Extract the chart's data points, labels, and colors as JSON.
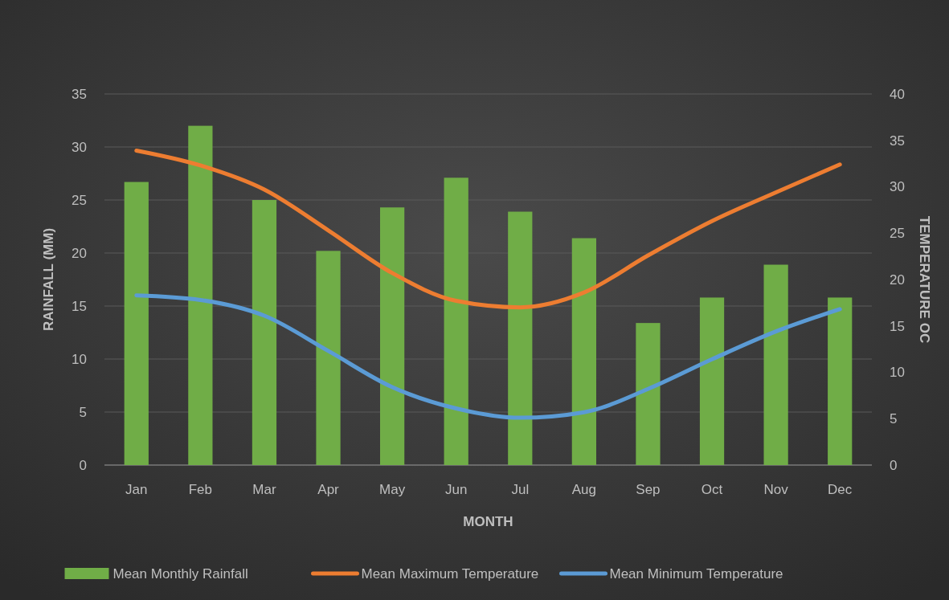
{
  "chart_data": {
    "type": "bar",
    "xlabel": "MONTH",
    "ylabel": "RAINFALL (MM)",
    "y2label": "TEMPERATURE OC",
    "categories": [
      "Jan",
      "Feb",
      "Mar",
      "Apr",
      "May",
      "Jun",
      "Jul",
      "Aug",
      "Sep",
      "Oct",
      "Nov",
      "Dec"
    ],
    "series": [
      {
        "name": "Mean Monthly Rainfall",
        "color": "#70ad47",
        "values": [
          26.7,
          32.0,
          25.0,
          20.2,
          24.3,
          27.1,
          23.9,
          21.4,
          13.4,
          15.8,
          18.9,
          15.8
        ]
      },
      {
        "name": "Mean Maximum Temperature",
        "type": "line",
        "axis": "y2",
        "color": "#ed7d31",
        "values": [
          33.9,
          32.3,
          29.7,
          25.3,
          20.7,
          17.7,
          17.0,
          18.6,
          22.6,
          26.3,
          29.4,
          32.4
        ]
      },
      {
        "name": "Mean Minimum Temperature",
        "type": "line",
        "axis": "y2",
        "color": "#5b9bd5",
        "values": [
          18.3,
          17.8,
          16.1,
          12.3,
          8.4,
          6.1,
          5.1,
          5.7,
          8.2,
          11.4,
          14.4,
          16.8
        ]
      }
    ],
    "ylim": [
      0,
      35
    ],
    "yticks": [
      0,
      5,
      10,
      15,
      20,
      25,
      30,
      35
    ],
    "y2lim": [
      0,
      40
    ],
    "y2ticks": [
      0,
      5,
      10,
      15,
      20,
      25,
      30,
      35,
      40
    ],
    "grid": "y",
    "legend": "bottom",
    "marker": "none",
    "line_style": "solid"
  }
}
